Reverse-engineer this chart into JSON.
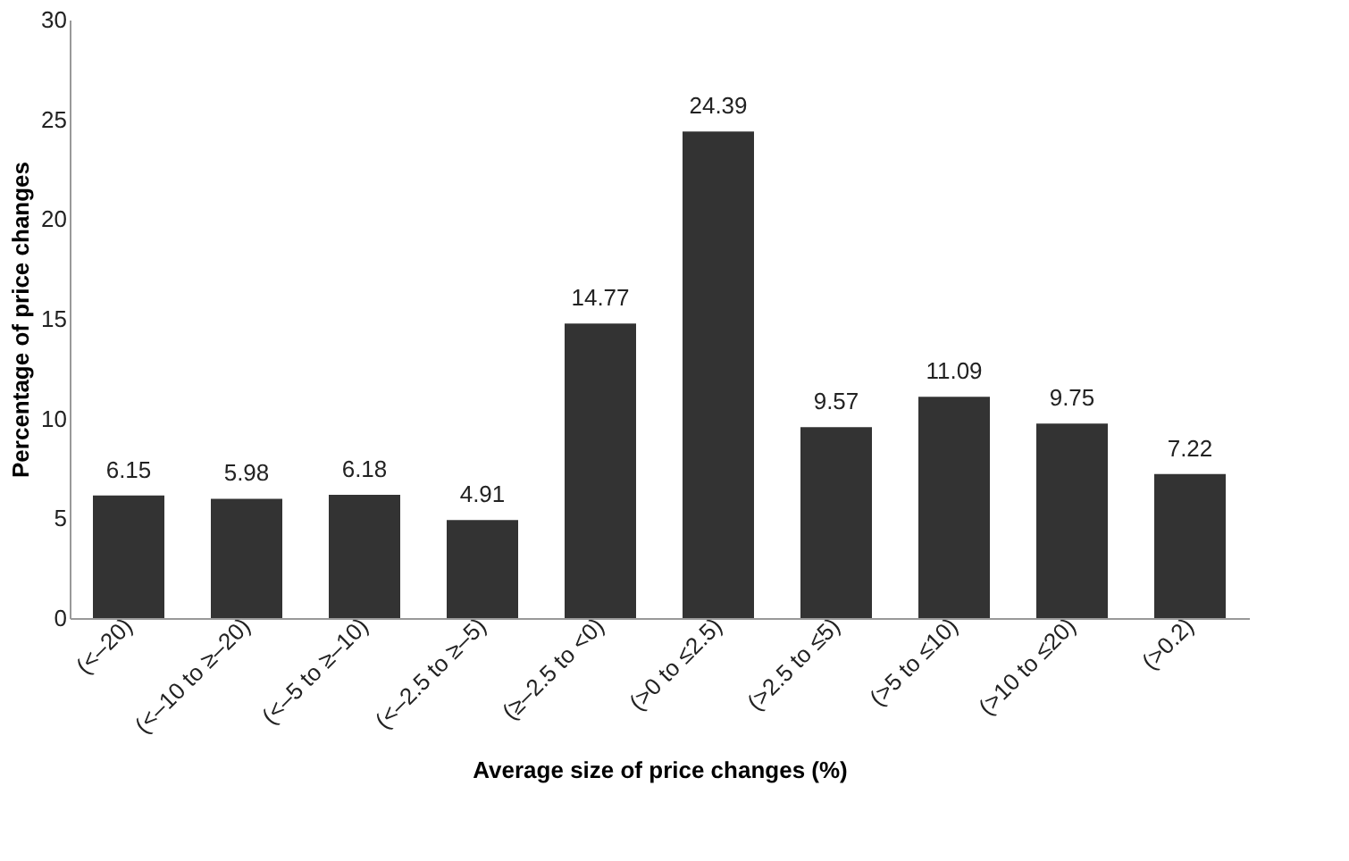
{
  "chart_data": {
    "type": "bar",
    "xlabel": "Average size of price changes (%)",
    "ylabel": "Percentage of price changes",
    "categories": [
      "(<–20)",
      "(<–10 to ≥–20)",
      "(<–5 to ≥–10)",
      "(<–2.5 to ≥–5)",
      "(≥–2.5 to <0)",
      "(>0 to ≤2.5)",
      "(>2.5 to ≤5)",
      "(>5 to ≤10)",
      "(>10 to ≤20)",
      "(>0.2)"
    ],
    "values": [
      6.15,
      5.98,
      6.18,
      4.91,
      14.77,
      24.39,
      9.57,
      11.09,
      9.75,
      7.22
    ],
    "color": "#333333",
    "ylim": [
      0,
      30
    ],
    "yticks": [
      0,
      5,
      10,
      15,
      20,
      25,
      30
    ],
    "data_labels": true,
    "grid": false
  }
}
